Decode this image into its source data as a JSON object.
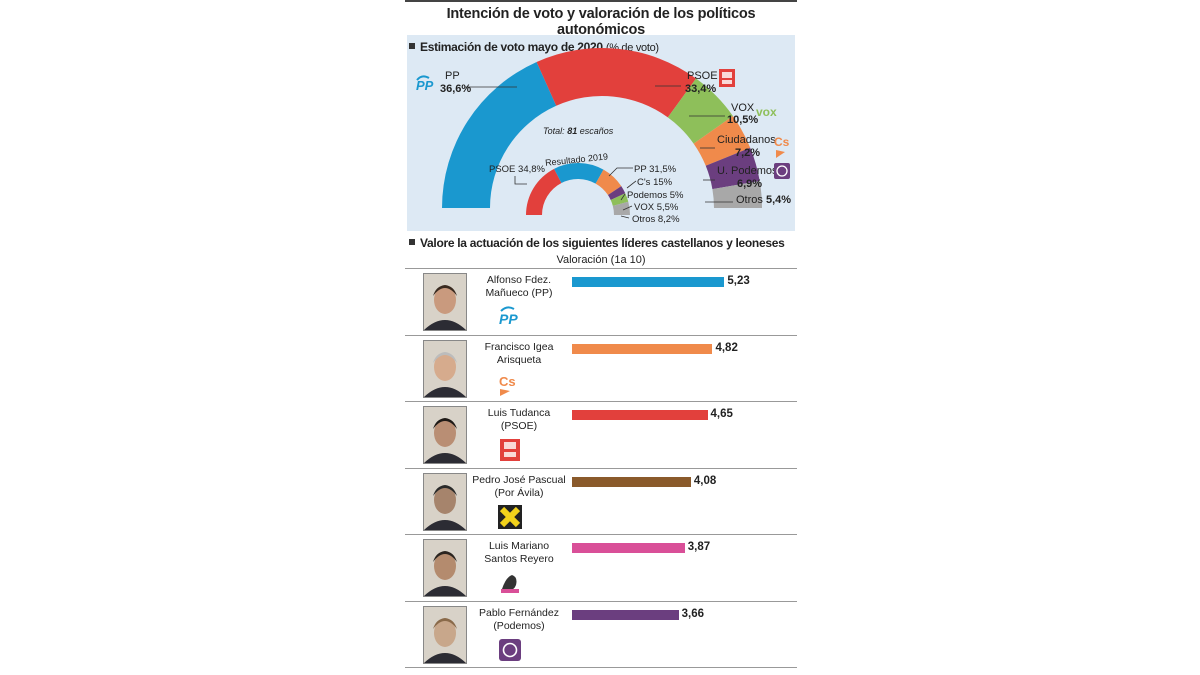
{
  "header": {
    "title": "Intención de voto y valoración de los políticos autonómicos"
  },
  "section1": {
    "title": "Estimación de voto mayo de 2020",
    "subtitle": "(% de voto)",
    "total_prefix": "Total: ",
    "total_value": "81",
    "total_suffix": " escaños",
    "inner_title": "Resultado 2019"
  },
  "section2": {
    "title": "Valore la actuación de los siguientes líderes castellanos y leoneses",
    "scale_label": "Valoración (1a 10)"
  },
  "colors": {
    "PP": "#1a98cf",
    "PSOE": "#e2403c",
    "VOX": "#8ebf5a",
    "Cs": "#f08a4b",
    "Podemos": "#6b3e7f",
    "Otros": "#a8a8a8",
    "PorAvila": "#8a5a2b",
    "UPL": "#d94f98"
  },
  "chart_data": [
    {
      "type": "pie",
      "title": "Estimación de voto mayo de 2020",
      "series": [
        {
          "name": "PP",
          "label": "36,6%",
          "value": 36.6
        },
        {
          "name": "PSOE",
          "label": "33,4%",
          "value": 33.4
        },
        {
          "name": "VOX",
          "label": "10,5%",
          "value": 10.5
        },
        {
          "name": "Ciudadanos",
          "label": "7,2%",
          "value": 7.2
        },
        {
          "name": "U. Podemos",
          "label": "6,9%",
          "value": 6.9
        },
        {
          "name": "Otros",
          "label": "5,4%",
          "value": 5.4
        }
      ]
    },
    {
      "type": "pie",
      "title": "Resultado 2019",
      "series": [
        {
          "name": "PSOE",
          "label": "PSOE 34,8%",
          "value": 34.8
        },
        {
          "name": "PP",
          "label": "PP 31,5%",
          "value": 31.5
        },
        {
          "name": "C's",
          "label": "C's 15%",
          "value": 15
        },
        {
          "name": "Podemos",
          "label": "Podemos 5%",
          "value": 5
        },
        {
          "name": "VOX",
          "label": "VOX 5,5%",
          "value": 5.5
        },
        {
          "name": "Otros",
          "label": "Otros 8,2%",
          "value": 8.2
        }
      ]
    },
    {
      "type": "bar",
      "title": "Valoración (1a 10)",
      "categories": [
        "Alfonso Fdez. Mañueco (PP)",
        "Francisco Igea Arisqueta",
        "Luis Tudanca (PSOE)",
        "Pedro José Pascual (Por Ávila)",
        "Luis Mariano Santos Reyero",
        "Pablo Fernández (Podemos)"
      ],
      "values": [
        5.23,
        4.82,
        4.65,
        4.08,
        3.87,
        3.66
      ],
      "value_labels": [
        "5,23",
        "4,82",
        "4,65",
        "4,08",
        "3,87",
        "3,66"
      ]
    }
  ],
  "leaders": [
    {
      "line1": "Alfonso Fdez.",
      "line2": "Mañueco (PP)",
      "party": "PP",
      "color": "#1a98cf"
    },
    {
      "line1": "Francisco Igea",
      "line2": "Arisqueta",
      "party": "Cs",
      "color": "#f08a4b"
    },
    {
      "line1": "Luis Tudanca",
      "line2": "(PSOE)",
      "party": "PSOE",
      "color": "#e2403c"
    },
    {
      "line1": "Pedro José Pascual",
      "line2": "(Por Ávila)",
      "party": "PorAvila",
      "color": "#8a5a2b"
    },
    {
      "line1": "Luis Mariano",
      "line2": "Santos Reyero",
      "party": "UPL",
      "color": "#d94f98"
    },
    {
      "line1": "Pablo Fernández",
      "line2": "(Podemos)",
      "party": "Podemos",
      "color": "#6b3e7f"
    }
  ]
}
